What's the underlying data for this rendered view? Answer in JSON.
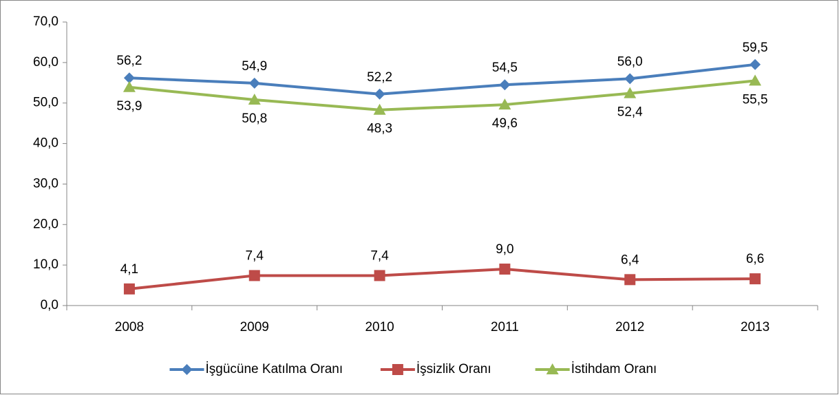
{
  "chart_data": {
    "type": "line",
    "categories": [
      "2008",
      "2009",
      "2010",
      "2011",
      "2012",
      "2013"
    ],
    "series": [
      {
        "name": "İşgücüne Katılma Oranı",
        "color": "#4a7ebb",
        "marker": "diamond",
        "values": [
          56.2,
          54.9,
          52.2,
          54.5,
          56.0,
          59.5
        ],
        "value_labels": [
          "56,2",
          "54,9",
          "52,2",
          "54,5",
          "56,0",
          "59,5"
        ]
      },
      {
        "name": "İşsizlik Oranı",
        "color": "#be4b48",
        "marker": "square",
        "values": [
          4.1,
          7.4,
          7.4,
          9.0,
          6.4,
          6.6
        ],
        "value_labels": [
          "4,1",
          "7,4",
          "7,4",
          "9,0",
          "6,4",
          "6,6"
        ]
      },
      {
        "name": "İstihdam Oranı",
        "color": "#98b954",
        "marker": "triangle",
        "values": [
          53.9,
          50.8,
          48.3,
          49.6,
          52.4,
          55.5
        ],
        "value_labels": [
          "53,9",
          "50,8",
          "48,3",
          "49,6",
          "52,4",
          "55,5"
        ]
      }
    ],
    "ylim": [
      0,
      70
    ],
    "yticks": [
      {
        "value": 0,
        "label": "0,0"
      },
      {
        "value": 10,
        "label": "10,0"
      },
      {
        "value": 20,
        "label": "20,0"
      },
      {
        "value": 30,
        "label": "30,0"
      },
      {
        "value": 40,
        "label": "40,0"
      },
      {
        "value": 50,
        "label": "50,0"
      },
      {
        "value": 60,
        "label": "60,0"
      },
      {
        "value": 70,
        "label": "70,0"
      }
    ],
    "grid": false,
    "legend": "bottom"
  }
}
